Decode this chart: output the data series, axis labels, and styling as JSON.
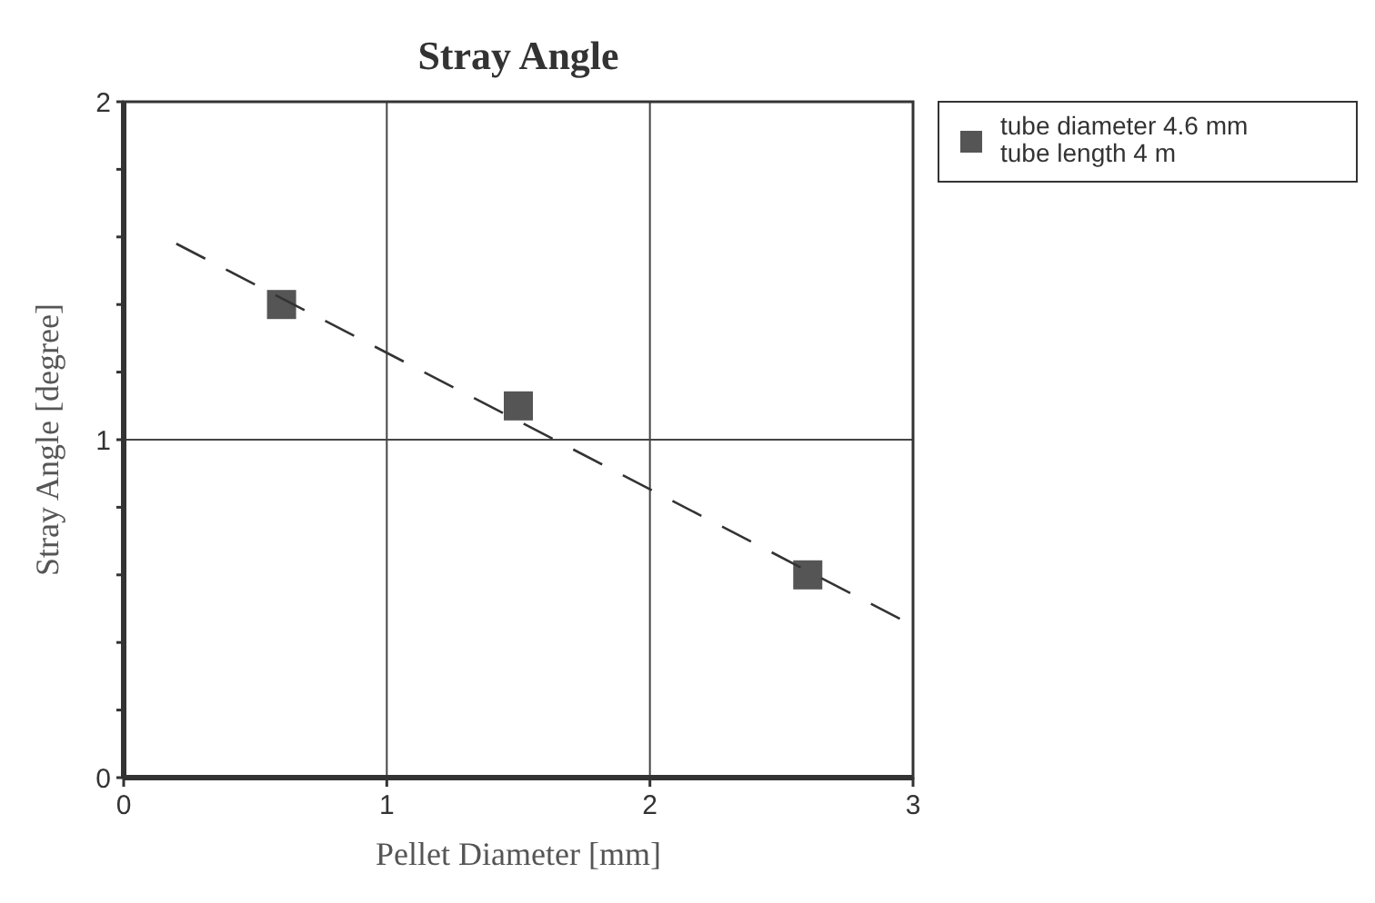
{
  "chart_data": {
    "type": "scatter",
    "title": "Stray Angle",
    "xlabel": "Pellet Diameter [mm]",
    "ylabel": "Stray Angle [degree]",
    "xlim": [
      0,
      3
    ],
    "ylim": [
      0,
      2
    ],
    "xticks": [
      0,
      1,
      2,
      3
    ],
    "yticks": [
      0,
      {
        "value": 0.2,
        "label": null
      },
      {
        "value": 0.4,
        "label": null
      },
      {
        "value": 0.6,
        "label": null
      },
      {
        "value": 0.8,
        "label": null
      },
      1,
      {
        "value": 1.2,
        "label": null
      },
      {
        "value": 1.4,
        "label": null
      },
      {
        "value": 1.6,
        "label": null
      },
      {
        "value": 1.8,
        "label": null
      },
      2
    ],
    "grid": true,
    "legend": "right",
    "marker": "square",
    "series": [
      {
        "name": "tube diameter 4.6 mm\ntube length 4 m",
        "color": "#555555",
        "x": [
          0.6,
          1.5,
          2.6
        ],
        "values": [
          1.4,
          1.1,
          0.6
        ]
      },
      {
        "type": "line",
        "color": "#333333",
        "line_style": "dashed",
        "marker": "none",
        "x": [
          0.2,
          2.95
        ],
        "values": [
          1.58,
          0.47
        ]
      }
    ]
  }
}
